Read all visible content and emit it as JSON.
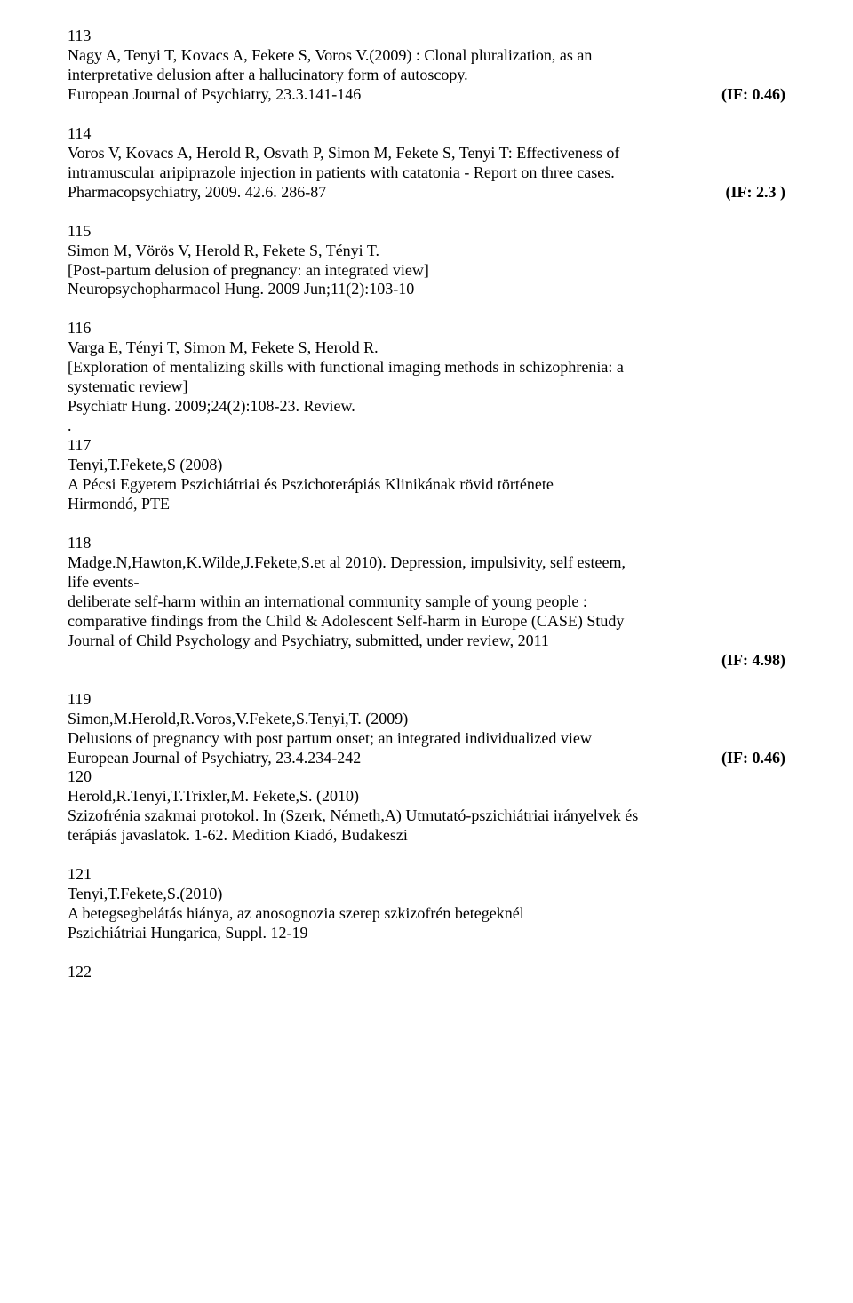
{
  "entries": [
    {
      "num": "113",
      "lines": [
        "Nagy A, Tenyi T, Kovacs A, Fekete S, Voros V.(2009) : Clonal pluralization, as an",
        "interpretative  delusion after a hallucinatory form of autoscopy."
      ],
      "jrow": {
        "left": "European Journal of Psychiatry, 23.3.141-146",
        "right": "(IF: 0.46)",
        "rightBold": true
      }
    },
    {
      "num": "114",
      "lines": [
        "Voros V, Kovacs A, Herold R, Osvath P, Simon M, Fekete S, Tenyi T: Effectiveness of",
        "intramuscular aripiprazole injection in patients with catatonia - Report on three cases."
      ],
      "jrow": {
        "left": "Pharmacopsychiatry, 2009. 42.6. 286-87",
        "right": "(IF: 2.3 )",
        "rightBold": true
      }
    },
    {
      "num": "115",
      "lines": [
        "Simon M, Vörös V, Herold R, Fekete S, Tényi T.",
        "[Post-partum delusion of pregnancy: an integrated view]",
        "Neuropsychopharmacol Hung. 2009 Jun;11(2):103-10"
      ]
    },
    {
      "num": "116",
      "lines": [
        "Varga E, Tényi T, Simon M, Fekete S, Herold R.",
        "[Exploration of mentalizing skills with functional imaging methods in schizophrenia: a",
        "systematic review]",
        "Psychiatr Hung. 2009;24(2):108-23. Review.",
        "."
      ],
      "noGap": true
    },
    {
      "num": "117",
      "lines": [
        "Tenyi,T.Fekete,S (2008)",
        "A Pécsi Egyetem Pszichiátriai és Pszichoterápiás Klinikának rövid története",
        "Hirmondó, PTE"
      ]
    },
    {
      "num": "118",
      "lines": [
        "Madge.N,Hawton,K.Wilde,J.Fekete,S.et al 2010). Depression, impulsivity, self esteem,",
        "life events-",
        "deliberate self-harm within an international community sample of young people :",
        "comparative findings from the Child & Adolescent Self-harm in Europe (CASE) Study",
        "Journal of Child Psychology and Psychiatry,  submitted, under review,  2011"
      ],
      "rightOnly": {
        "text": "(IF: 4.98)",
        "bold": true
      }
    },
    {
      "num": "119",
      "lines": [
        "Simon,M.Herold,R.Voros,V.Fekete,S.Tenyi,T. (2009)",
        "Delusions of pregnancy with post partum onset; an integrated individualized view"
      ],
      "jrow": {
        "left": "European Journal of Psychiatry, 23.4.234-242",
        "right": "(IF: 0.46)",
        "rightBold": true
      },
      "noGap": true
    },
    {
      "num": "120",
      "lines": [
        "Herold,R.Tenyi,T.Trixler,M. Fekete,S. (2010)",
        "Szizofrénia szakmai protokol. In (Szerk, Németh,A) Utmutató-pszichiátriai irányelvek és",
        "terápiás javaslatok. 1-62.  Medition Kiadó, Budakeszi"
      ]
    },
    {
      "num": "121",
      "lines": [
        "Tenyi,T.Fekete,S.(2010)",
        "A betegsegbelátás hiánya, az anosognozia szerep szkizofrén betegeknél",
        "Pszichiátriai Hungarica, Suppl.   12-19"
      ]
    },
    {
      "num": "122",
      "lines": []
    }
  ]
}
